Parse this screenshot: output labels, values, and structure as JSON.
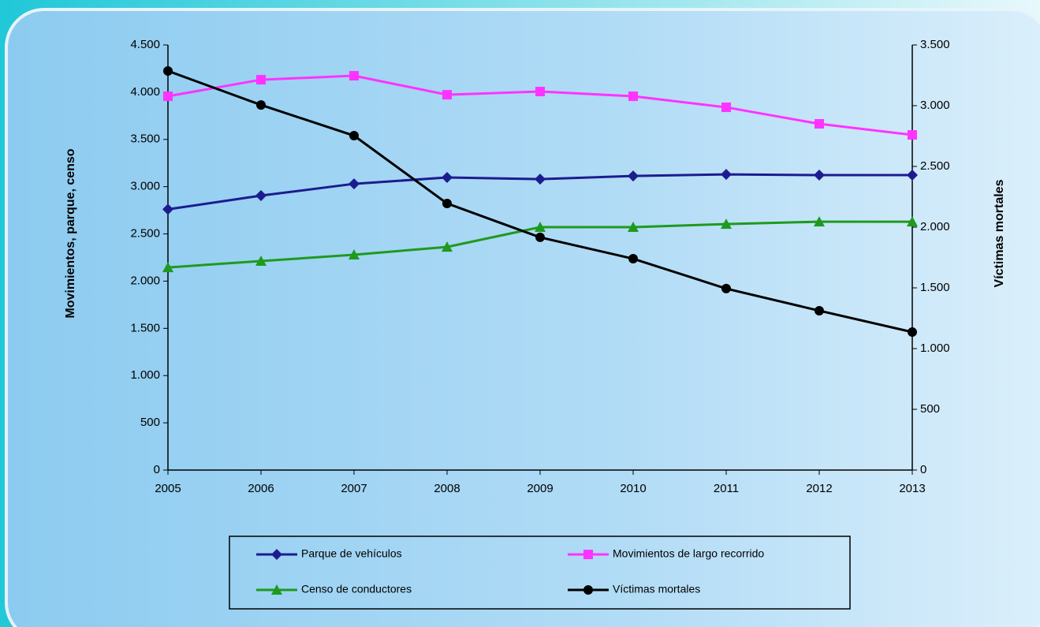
{
  "chart_data": {
    "type": "line",
    "y_label": "Movimientos, parque, censo",
    "y2_label": "Víctimas mortales",
    "x": [
      2005,
      2006,
      2007,
      2008,
      2009,
      2010,
      2011,
      2012,
      2013
    ],
    "xlim": [
      2005,
      2013
    ],
    "xticks": [
      2005,
      2006,
      2007,
      2008,
      2009,
      2010,
      2011,
      2012,
      2013
    ],
    "ylim": [
      0,
      4500
    ],
    "yticks": [
      0,
      500,
      {
        "value": 1000,
        "label": "1.000"
      },
      {
        "value": 1500,
        "label": "1.500"
      },
      {
        "value": 2000,
        "label": "2.000"
      },
      {
        "value": 2500,
        "label": "2.500"
      },
      {
        "value": 3000,
        "label": "3.000"
      },
      {
        "value": 3500,
        "label": "3.500"
      },
      {
        "value": 4000,
        "label": "4.000"
      },
      {
        "value": 4500,
        "label": "4.500"
      }
    ],
    "y2lim": [
      0,
      3500
    ],
    "y2ticks": [
      0,
      500,
      {
        "value": 1000,
        "label": "1.000"
      },
      {
        "value": 1500,
        "label": "1.500"
      },
      {
        "value": 2000,
        "label": "2.000"
      },
      {
        "value": 2500,
        "label": "2.500"
      },
      {
        "value": 3000,
        "label": "3.000"
      },
      {
        "value": 3500,
        "label": "3.500"
      }
    ],
    "series": [
      {
        "name": "Parque de vehículos",
        "color": "#1c1c8f",
        "marker": "diamond",
        "values": [
          2760,
          2905,
          3030,
          3097,
          3080,
          3113,
          3130,
          3122,
          3122
        ]
      },
      {
        "name": "Movimientos de largo recorrido",
        "color": "#ff33ff",
        "marker": "square",
        "values": [
          3957,
          4132,
          4174,
          3973,
          4007,
          3957,
          3840,
          3665,
          3548
        ]
      },
      {
        "name": "Censo de conductores",
        "color": "#1e9a1e",
        "marker": "triangle",
        "values": [
          2145,
          2212,
          2279,
          2362,
          2571,
          2571,
          2604,
          2629,
          2629
        ]
      },
      {
        "name": "Víctimas mortales",
        "color": "#000000",
        "marker": "circle",
        "axis": "y2",
        "values": [
          3286,
          3006,
          2753,
          2195,
          1916,
          1740,
          1494,
          1312,
          1136
        ]
      }
    ]
  }
}
